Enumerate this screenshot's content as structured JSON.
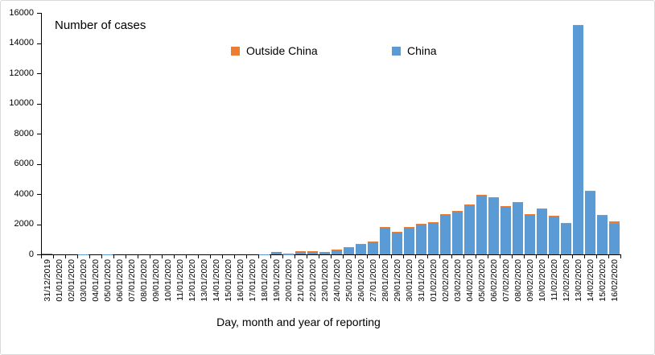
{
  "chart": {
    "title": "Number of cases",
    "x_axis_title": "Day, month and year of reporting"
  },
  "chart_data": {
    "type": "bar",
    "stacked": true,
    "title": "Number of cases",
    "xlabel": "Day, month and year of reporting",
    "ylabel": "",
    "ylim": [
      0,
      16000
    ],
    "ytick_step": 2000,
    "grid": false,
    "legend_position": "top-center",
    "legend_order": [
      "Outside China",
      "China"
    ],
    "categories": [
      "31/12/2019",
      "01/01/2020",
      "02/01/2020",
      "03/01/2020",
      "04/01/2020",
      "05/01/2020",
      "06/01/2020",
      "07/01/2020",
      "08/01/2020",
      "09/01/2020",
      "10/01/2020",
      "11/01/2020",
      "12/01/2020",
      "13/01/2020",
      "14/01/2020",
      "15/01/2020",
      "16/01/2020",
      "17/01/2020",
      "18/01/2020",
      "19/01/2020",
      "20/01/2020",
      "21/01/2020",
      "22/01/2020",
      "23/01/2020",
      "24/01/2020",
      "25/01/2020",
      "26/01/2020",
      "27/01/2020",
      "28/01/2020",
      "29/01/2020",
      "30/01/2020",
      "31/01/2020",
      "01/02/2020",
      "02/02/2020",
      "03/02/2020",
      "04/02/2020",
      "05/02/2020",
      "06/02/2020",
      "07/02/2020",
      "08/02/2020",
      "09/02/2020",
      "10/02/2020",
      "11/02/2020",
      "12/02/2020",
      "13/02/2020",
      "14/02/2020",
      "15/02/2020",
      "16/02/2020"
    ],
    "series": [
      {
        "name": "China",
        "color": "#5B9BD5",
        "values": [
          27,
          0,
          0,
          17,
          0,
          15,
          0,
          0,
          0,
          0,
          0,
          0,
          0,
          0,
          0,
          0,
          0,
          0,
          17,
          136,
          19,
          151,
          140,
          97,
          259,
          441,
          665,
          787,
          1753,
          1466,
          1740,
          1980,
          2101,
          2590,
          2812,
          3237,
          3872,
          3727,
          3160,
          3418,
          2607,
          2974,
          2484,
          2022,
          15141,
          4156,
          2538,
          2007
        ]
      },
      {
        "name": "Outside China",
        "color": "#ED7D31",
        "values": [
          0,
          0,
          0,
          0,
          0,
          0,
          0,
          0,
          0,
          0,
          0,
          0,
          0,
          0,
          0,
          0,
          0,
          0,
          0,
          0,
          14,
          4,
          2,
          3,
          4,
          9,
          12,
          8,
          14,
          7,
          12,
          25,
          27,
          17,
          19,
          23,
          29,
          34,
          18,
          24,
          23,
          44,
          63,
          19,
          47,
          84,
          36,
          162
        ]
      }
    ]
  }
}
